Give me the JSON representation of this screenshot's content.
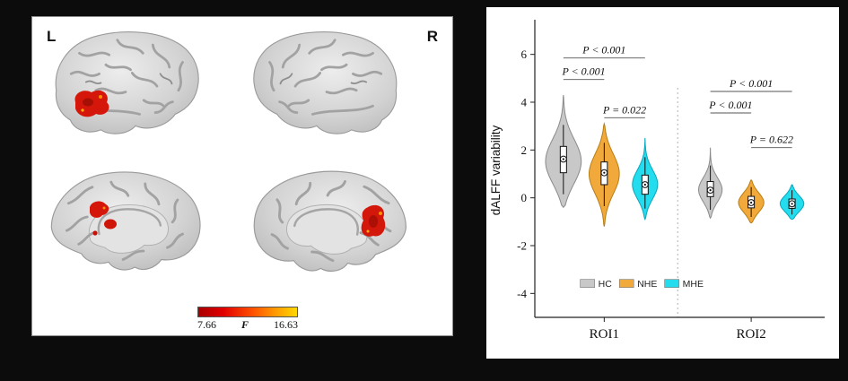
{
  "figure": {
    "left_panel": {
      "hemisphere_labels": {
        "left": "L",
        "right": "R"
      },
      "colorbar": {
        "min": "7.66",
        "stat_label": "F",
        "max": "16.63"
      },
      "activation_color": "#d4170a",
      "brain_color": "#d2d2d2"
    }
  },
  "chart_data": {
    "type": "violin",
    "title": "",
    "xlabel": "",
    "ylabel": "dALFF variability",
    "ylim": [
      -5,
      7.3
    ],
    "yticks": [
      6,
      4,
      2,
      0,
      -2,
      -4
    ],
    "xlim": [
      0.3,
      7.4
    ],
    "separator_x": 3.8,
    "grid": false,
    "legend_position": "bottom-center",
    "legend_center_x": 3.0,
    "legend_y": -3.6,
    "group_labels": [
      {
        "label": "ROI1",
        "x": 2
      },
      {
        "label": "ROI2",
        "x": 5.6
      }
    ],
    "legend": [
      {
        "label": "HC",
        "color": "#c8c8c8"
      },
      {
        "label": "NHE",
        "color": "#f2a93b"
      },
      {
        "label": "MHE",
        "color": "#23dcee"
      }
    ],
    "violins": [
      {
        "roi": "ROI1",
        "group": "HC",
        "x": 1,
        "color": "#c8c8c8",
        "edge": "#8a8a8a",
        "min": -0.4,
        "max": 4.3,
        "peak": 1.5,
        "sigma": 0.95,
        "width": 0.44,
        "q1": 1.05,
        "q3": 2.15,
        "median": 1.62,
        "whisker_low": 0.15,
        "whisker_high": 3.05
      },
      {
        "roi": "ROI1",
        "group": "NHE",
        "x": 2,
        "color": "#f2a93b",
        "edge": "#b97d12",
        "min": -1.2,
        "max": 3.1,
        "peak": 1.0,
        "sigma": 0.85,
        "width": 0.37,
        "q1": 0.55,
        "q3": 1.5,
        "median": 1.05,
        "whisker_low": -0.35,
        "whisker_high": 2.3
      },
      {
        "roi": "ROI1",
        "group": "MHE",
        "x": 3,
        "color": "#23dcee",
        "edge": "#0aa6bd",
        "min": -0.9,
        "max": 2.5,
        "peak": 0.55,
        "sigma": 0.62,
        "width": 0.31,
        "q1": 0.15,
        "q3": 0.95,
        "median": 0.55,
        "whisker_low": -0.45,
        "whisker_high": 1.7
      },
      {
        "roi": "ROI2",
        "group": "HC",
        "x": 4.6,
        "color": "#c8c8c8",
        "edge": "#8a8a8a",
        "min": -0.85,
        "max": 2.1,
        "peak": 0.32,
        "sigma": 0.52,
        "width": 0.29,
        "q1": 0.05,
        "q3": 0.68,
        "median": 0.32,
        "whisker_low": -0.5,
        "whisker_high": 1.35
      },
      {
        "roi": "ROI2",
        "group": "NHE",
        "x": 5.6,
        "color": "#f2a93b",
        "edge": "#b97d12",
        "min": -1.05,
        "max": 0.75,
        "peak": -0.2,
        "sigma": 0.42,
        "width": 0.31,
        "q1": -0.42,
        "q3": 0.06,
        "median": -0.2,
        "whisker_low": -0.8,
        "whisker_high": 0.45
      },
      {
        "roi": "ROI2",
        "group": "MHE",
        "x": 6.6,
        "color": "#23dcee",
        "edge": "#0aa6bd",
        "min": -0.9,
        "max": 0.55,
        "peak": -0.25,
        "sigma": 0.35,
        "width": 0.29,
        "q1": -0.44,
        "q3": -0.05,
        "median": -0.25,
        "whisker_low": -0.7,
        "whisker_high": 0.32
      }
    ],
    "brackets": [
      {
        "x1": 1,
        "x2": 3,
        "y": 5.85,
        "label": "P < 0.001"
      },
      {
        "x1": 1,
        "x2": 2,
        "y": 4.95,
        "label": "P < 0.001"
      },
      {
        "x1": 2,
        "x2": 3,
        "y": 3.35,
        "label": "P = 0.022"
      },
      {
        "x1": 4.6,
        "x2": 6.6,
        "y": 4.45,
        "label": "P < 0.001"
      },
      {
        "x1": 4.6,
        "x2": 5.6,
        "y": 3.55,
        "label": "P < 0.001"
      },
      {
        "x1": 5.6,
        "x2": 6.6,
        "y": 2.1,
        "label": "P = 0.622"
      }
    ]
  }
}
